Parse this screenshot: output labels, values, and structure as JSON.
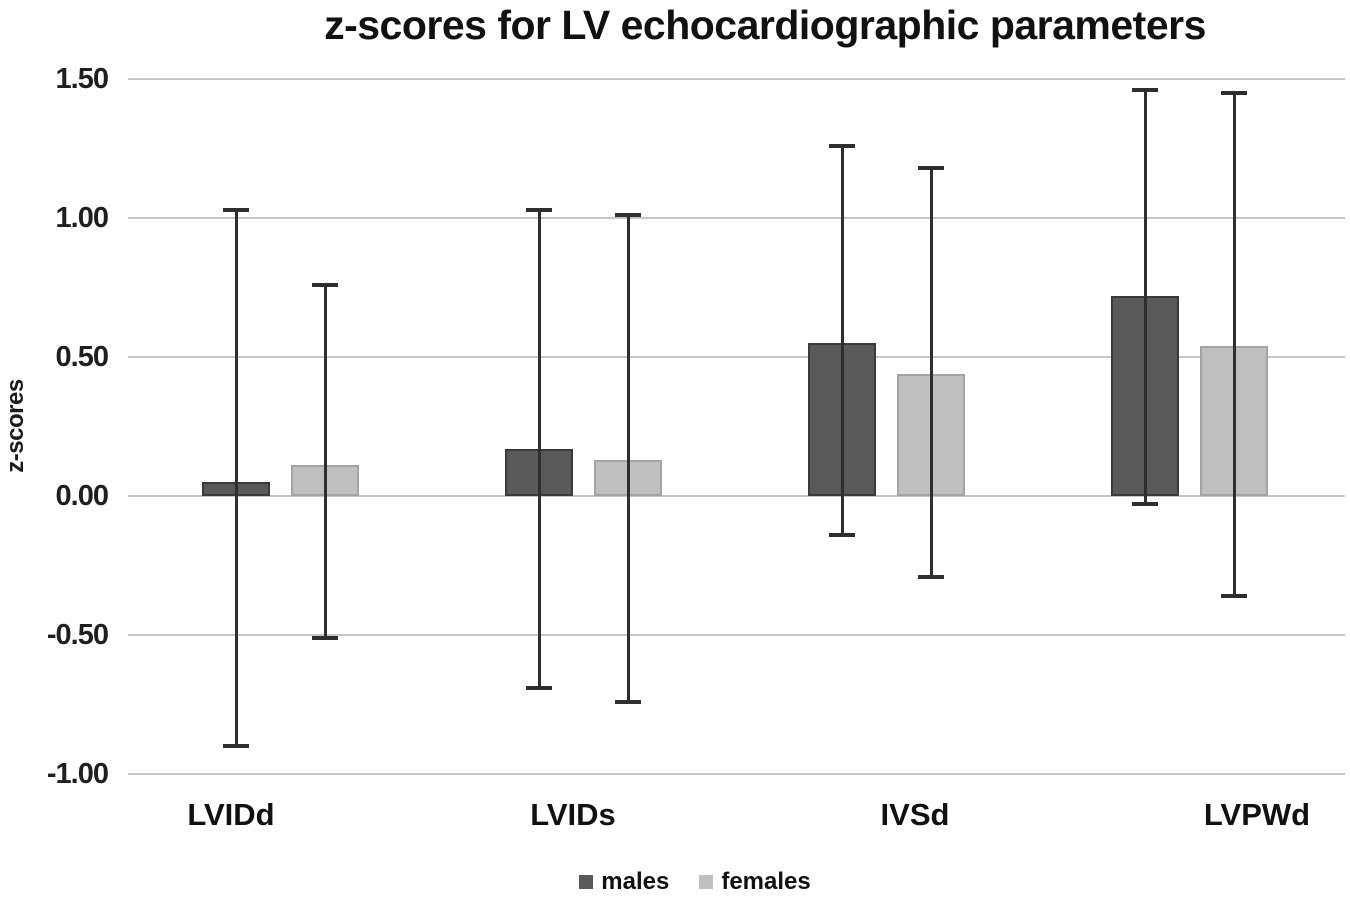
{
  "title": "z-scores for LV echocardiographic parameters",
  "legend": [
    {
      "label": "males",
      "color": "#595959"
    },
    {
      "label": "females",
      "color": "#bfbfbf"
    }
  ],
  "chart_data": {
    "type": "bar",
    "title": "z-scores for LV echocardiographic parameters",
    "xlabel": "",
    "ylabel": "z-scores",
    "categories": [
      "LVIDd",
      "LVIDs",
      "IVSd",
      "LVPWd"
    ],
    "series": [
      {
        "name": "males",
        "color": "#595959",
        "border_color": "#3a3a3a",
        "values": [
          0.05,
          0.17,
          0.55,
          0.72
        ],
        "error_high": [
          1.03,
          1.03,
          1.26,
          1.46
        ],
        "error_low": [
          -0.9,
          -0.69,
          -0.14,
          -0.03
        ]
      },
      {
        "name": "females",
        "color": "#bfbfbf",
        "border_color": "#a3a3a3",
        "values": [
          0.11,
          0.13,
          0.44,
          0.54
        ],
        "error_high": [
          0.76,
          1.01,
          1.18,
          1.45
        ],
        "error_low": [
          -0.51,
          -0.74,
          -0.29,
          -0.36
        ]
      }
    ],
    "ylim": [
      -1.0,
      1.5
    ],
    "yticks": [
      1.5,
      1.0,
      0.5,
      0.0,
      -0.5,
      -1.0
    ],
    "ytick_labels": [
      "1.50",
      "1.00",
      "0.50",
      "0.00",
      "-0.50",
      "-1.00"
    ],
    "grid": true,
    "legend_position": "bottom",
    "error_bar_color": "#2e2e2e"
  }
}
